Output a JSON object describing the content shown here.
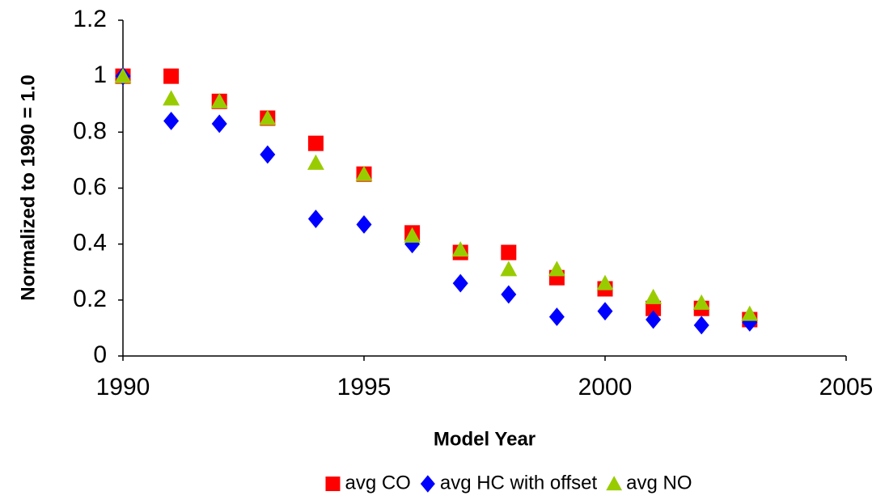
{
  "chart_data": {
    "type": "scatter",
    "x_label": "Model Year",
    "y_label": "Normalized to 1990 = 1.0",
    "x": [
      1990,
      1991,
      1992,
      1993,
      1994,
      1995,
      1996,
      1997,
      1998,
      1999,
      2000,
      2001,
      2002,
      2003
    ],
    "series": [
      {
        "name": "avg CO",
        "color": "#ff0000",
        "marker": "square",
        "values": [
          1.0,
          1.0,
          0.91,
          0.85,
          0.76,
          0.65,
          0.44,
          0.37,
          0.37,
          0.28,
          0.24,
          0.17,
          0.17,
          0.13
        ]
      },
      {
        "name": "avg HC with offset",
        "color": "#0000ff",
        "marker": "diamond",
        "values": [
          1.0,
          0.84,
          0.83,
          0.72,
          0.49,
          0.47,
          0.4,
          0.26,
          0.22,
          0.14,
          0.16,
          0.13,
          0.11,
          0.12
        ]
      },
      {
        "name": "avg NO",
        "color": "#99cc00",
        "marker": "triangle",
        "values": [
          1.0,
          0.92,
          0.91,
          0.85,
          0.69,
          0.65,
          0.43,
          0.38,
          0.31,
          0.31,
          0.26,
          0.21,
          0.19,
          0.15
        ]
      }
    ],
    "xlim": [
      1990,
      2005
    ],
    "xticks": [
      1990,
      1995,
      2000,
      2005
    ],
    "ylim": [
      0,
      1.2
    ],
    "yticks": [
      0,
      0.2,
      0.4,
      0.6,
      0.8,
      1,
      1.2
    ],
    "grid": false,
    "legend": "bottom"
  }
}
